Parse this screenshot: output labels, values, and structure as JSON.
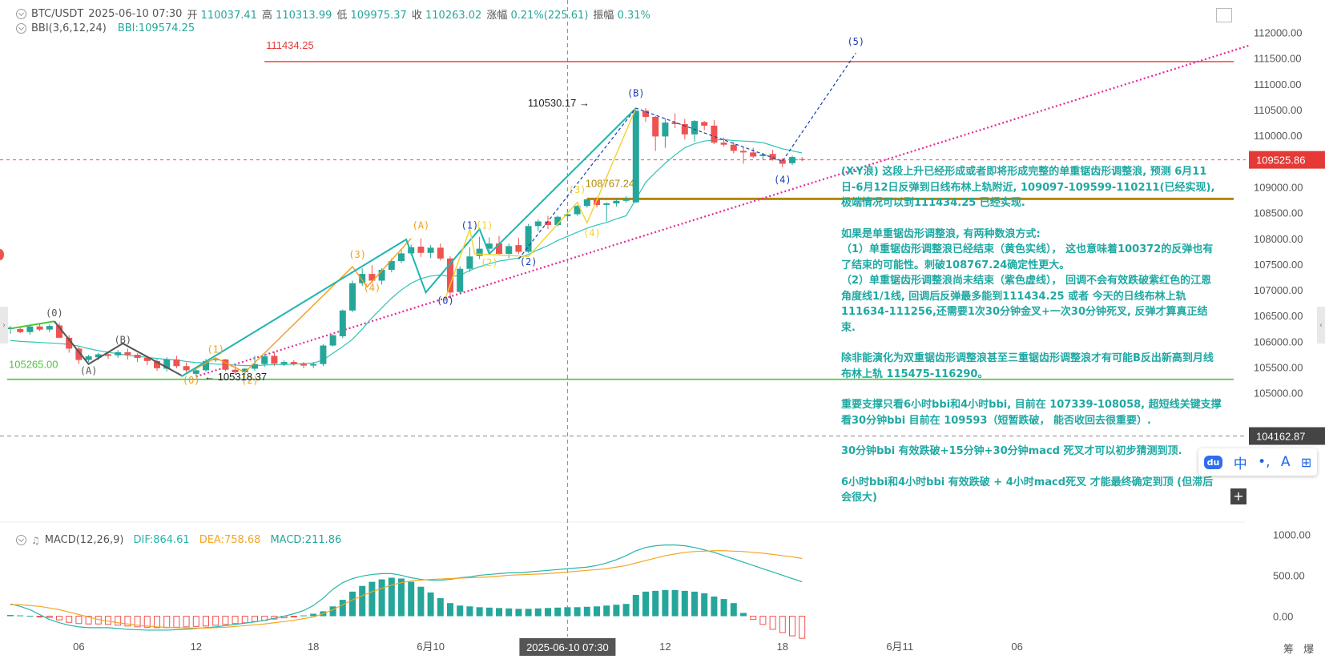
{
  "header": {
    "symbol": "BTC/USDT",
    "datetime": "2025-06-10 07:30",
    "open_label": "开",
    "open": "110037.41",
    "high_label": "高",
    "high": "110313.99",
    "low_label": "低",
    "low": "109975.37",
    "close_label": "收",
    "close": "110263.02",
    "change_label": "涨幅",
    "change": "0.21%(225.61)",
    "amp_label": "振幅",
    "amp": "0.31%",
    "bbi_name": "BBI(3,6,12,24)",
    "bbi_value": "BBI:109574.25"
  },
  "macd_header": {
    "name": "MACD(12,26,9)",
    "dif": "DIF:864.61",
    "dea": "DEA:758.68",
    "macd": "MACD:211.86"
  },
  "colors": {
    "up": "#26a69a",
    "down": "#ef5350",
    "bbi": "#2ec5b6",
    "pink": "#e6279a",
    "gold": "#b08a00",
    "green": "#4cc638",
    "red_line": "#e53935",
    "orange": "#f59c1a",
    "yellow": "#f2d22e",
    "teal": "#1fb5b0",
    "dark": "#555555",
    "blue_wave": "#1a3fae"
  },
  "chart_data": {
    "type": "candlestick",
    "ylim": [
      104000,
      112350
    ],
    "y_ticks": [
      112000,
      111500,
      111000,
      110500,
      110000,
      109500,
      109000,
      108500,
      108000,
      107500,
      107000,
      106500,
      106000,
      105500,
      105000
    ],
    "y_tick_labels": [
      "112000.00",
      "111500.00",
      "111000.00",
      "110500.00",
      "110000.00",
      "109500.00",
      "109000.00",
      "108500.00",
      "108000.00",
      "107500.00",
      "107000.00",
      "106500.00",
      "106000.00",
      "105500.00",
      "105000.00"
    ],
    "x_labels": [
      {
        "text": "06",
        "bar": 7
      },
      {
        "text": "12",
        "bar": 19
      },
      {
        "text": "18",
        "bar": 31
      },
      {
        "text": "6月10",
        "bar": 43
      },
      {
        "text": "12",
        "bar": 67
      },
      {
        "text": "18",
        "bar": 79
      },
      {
        "text": "6月11",
        "bar": 91
      },
      {
        "text": "06",
        "bar": 103
      }
    ],
    "crosshair": {
      "bar": 57,
      "label": "2025-06-10 07:30",
      "price_label": "104162.87",
      "price": 104162.87
    },
    "last_price": {
      "price": 109525.86,
      "label": "109525.86"
    },
    "candles": [
      [
        106240,
        106300,
        106150,
        106270
      ],
      [
        106240,
        106270,
        106160,
        106180
      ],
      [
        106180,
        106320,
        106130,
        106290
      ],
      [
        106290,
        106360,
        106200,
        106230
      ],
      [
        106230,
        106330,
        106180,
        106300
      ],
      [
        106310,
        106360,
        106060,
        106070
      ],
      [
        106070,
        106120,
        105780,
        105860
      ],
      [
        105860,
        105900,
        105560,
        105640
      ],
      [
        105640,
        105740,
        105600,
        105710
      ],
      [
        105690,
        105780,
        105640,
        105750
      ],
      [
        105750,
        105800,
        105660,
        105720
      ],
      [
        105730,
        105830,
        105680,
        105790
      ],
      [
        105790,
        105860,
        105650,
        105740
      ],
      [
        105740,
        105770,
        105600,
        105680
      ],
      [
        105680,
        105720,
        105540,
        105620
      ],
      [
        105620,
        105660,
        105430,
        105480
      ],
      [
        105470,
        105690,
        105420,
        105650
      ],
      [
        105650,
        105720,
        105480,
        105520
      ],
      [
        105520,
        105590,
        105400,
        105440
      ],
      [
        105370,
        105490,
        105318.37,
        105440
      ],
      [
        105440,
        105660,
        105410,
        105620
      ],
      [
        105640,
        105690,
        105600,
        105650
      ],
      [
        105650,
        105660,
        105420,
        105450
      ],
      [
        105450,
        105530,
        105360,
        105400
      ],
      [
        105400,
        105480,
        105350,
        105470
      ],
      [
        105470,
        105720,
        105430,
        105560
      ],
      [
        105560,
        105740,
        105510,
        105710
      ],
      [
        105720,
        105800,
        105520,
        105570
      ],
      [
        105560,
        105630,
        105520,
        105600
      ],
      [
        105600,
        105640,
        105530,
        105560
      ],
      [
        105560,
        105600,
        105480,
        105530
      ],
      [
        105530,
        105600,
        105480,
        105560
      ],
      [
        105560,
        105950,
        105520,
        105920
      ],
      [
        105920,
        106140,
        105900,
        106120
      ],
      [
        106100,
        106620,
        106060,
        106600
      ],
      [
        106600,
        107180,
        106570,
        107130
      ],
      [
        107130,
        107420,
        107080,
        107310
      ],
      [
        107310,
        107480,
        107130,
        107180
      ],
      [
        107180,
        107420,
        107100,
        107390
      ],
      [
        107390,
        107610,
        107340,
        107560
      ],
      [
        107560,
        107780,
        107520,
        107710
      ],
      [
        107710,
        107880,
        107670,
        107830
      ],
      [
        107840,
        108000,
        107640,
        107720
      ],
      [
        107720,
        107870,
        107620,
        107820
      ],
      [
        107820,
        107900,
        107570,
        107610
      ],
      [
        107610,
        107650,
        106830,
        106950
      ],
      [
        106960,
        107460,
        106940,
        107410
      ],
      [
        107410,
        107830,
        107350,
        107650
      ],
      [
        107660,
        108030,
        107600,
        107800
      ],
      [
        107800,
        108020,
        107690,
        107900
      ],
      [
        107900,
        108050,
        107670,
        107700
      ],
      [
        107700,
        107900,
        107620,
        107850
      ],
      [
        107870,
        108010,
        107700,
        107740
      ],
      [
        107740,
        108280,
        107720,
        108240
      ],
      [
        108240,
        108370,
        108140,
        108330
      ],
      [
        108330,
        108440,
        108180,
        108260
      ],
      [
        108260,
        108440,
        108230,
        108420
      ],
      [
        108430,
        108570,
        108330,
        108470
      ],
      [
        108470,
        108650,
        108440,
        108630
      ],
      [
        108630,
        108770,
        108600,
        108760
      ],
      [
        108760,
        108800,
        108600,
        108650
      ],
      [
        108650,
        108700,
        108330,
        108680
      ],
      [
        108680,
        108780,
        108620,
        108730
      ],
      [
        108730,
        108820,
        108690,
        108770
      ],
      [
        108700,
        110530.17,
        108690,
        110480
      ],
      [
        110480,
        110530.17,
        110260,
        110360
      ],
      [
        110360,
        110380,
        109700,
        109980
      ],
      [
        109980,
        110330,
        109760,
        110250
      ],
      [
        110250,
        110430,
        110140,
        110220
      ],
      [
        110220,
        110320,
        109920,
        110020
      ],
      [
        110020,
        110300,
        109880,
        110280
      ],
      [
        110260,
        110280,
        110100,
        110190
      ],
      [
        110190,
        110300,
        109830,
        109860
      ],
      [
        109860,
        109960,
        109780,
        109820
      ],
      [
        109820,
        109870,
        109650,
        109700
      ],
      [
        109700,
        109780,
        109450,
        109670
      ],
      [
        109670,
        109760,
        109560,
        109590
      ],
      [
        109600,
        109660,
        109520,
        109630
      ],
      [
        109640,
        109720,
        109510,
        109530
      ],
      [
        109530,
        109560,
        109380,
        109450
      ],
      [
        109460,
        109610,
        109420,
        109580
      ],
      [
        109540,
        109580,
        109500,
        109525.86
      ]
    ],
    "bbi": [
      106020,
      106000,
      105990,
      105980,
      105970,
      105960,
      105940,
      105910,
      105860,
      105820,
      105790,
      105760,
      105730,
      105710,
      105690,
      105670,
      105650,
      105640,
      105610,
      105590,
      105580,
      105560,
      105550,
      105540,
      105530,
      105530,
      105540,
      105550,
      105550,
      105560,
      105570,
      105580,
      105640,
      105770,
      105900,
      106040,
      106240,
      106460,
      106650,
      106840,
      107000,
      107130,
      107220,
      107270,
      107290,
      107260,
      107280,
      107380,
      107450,
      107510,
      107560,
      107590,
      107620,
      107690,
      107780,
      107860,
      107960,
      108040,
      108120,
      108200,
      108260,
      108310,
      108380,
      108440,
      108760,
      109090,
      109280,
      109460,
      109620,
      109760,
      109840,
      109890,
      109910,
      109920,
      109900,
      109890,
      109880,
      109860,
      109800,
      109740,
      109700,
      109660
    ],
    "macd_ylim": [
      -200,
      1150
    ],
    "macd_ticks": [
      1000,
      500,
      0
    ],
    "macd_tick_labels": [
      "1000.00",
      "500.00",
      "0.00"
    ],
    "macd_hist": [
      15,
      10,
      5,
      -5,
      -15,
      -45,
      -75,
      -90,
      -95,
      -95,
      -100,
      -110,
      -120,
      -130,
      -135,
      -140,
      -140,
      -135,
      -130,
      -125,
      -120,
      -110,
      -100,
      -90,
      -80,
      -65,
      -50,
      -35,
      -20,
      -5,
      10,
      30,
      60,
      120,
      200,
      300,
      370,
      420,
      450,
      470,
      460,
      420,
      360,
      290,
      220,
      160,
      130,
      120,
      110,
      105,
      100,
      95,
      90,
      90,
      95,
      100,
      105,
      110,
      110,
      115,
      120,
      130,
      140,
      150,
      260,
      300,
      310,
      320,
      320,
      310,
      300,
      280,
      240,
      210,
      160,
      40,
      -40,
      -100,
      -160,
      -200,
      -240,
      -270
    ],
    "dif": [
      150,
      120,
      80,
      20,
      -40,
      -80,
      -110,
      -130,
      -140,
      -140,
      -140,
      -150,
      -160,
      -165,
      -170,
      -170,
      -170,
      -165,
      -160,
      -150,
      -140,
      -130,
      -115,
      -100,
      -85,
      -70,
      -50,
      -25,
      0,
      30,
      70,
      130,
      220,
      330,
      410,
      460,
      490,
      510,
      520,
      520,
      500,
      470,
      450,
      440,
      440,
      450,
      470,
      480,
      500,
      510,
      520,
      530,
      530,
      540,
      550,
      560,
      570,
      580,
      590,
      600,
      620,
      650,
      690,
      740,
      800,
      840,
      860,
      870,
      870,
      860,
      840,
      810,
      780,
      740,
      700,
      660,
      620,
      580,
      540,
      500,
      460,
      420
    ],
    "dea": [
      140,
      140,
      130,
      120,
      100,
      80,
      50,
      20,
      -10,
      -40,
      -60,
      -80,
      -95,
      -110,
      -120,
      -130,
      -135,
      -140,
      -145,
      -145,
      -145,
      -140,
      -135,
      -125,
      -115,
      -105,
      -95,
      -80,
      -65,
      -50,
      -30,
      -10,
      30,
      80,
      140,
      200,
      250,
      300,
      340,
      380,
      410,
      430,
      440,
      450,
      455,
      460,
      465,
      470,
      475,
      480,
      490,
      500,
      505,
      510,
      515,
      520,
      530,
      540,
      550,
      560,
      570,
      580,
      600,
      620,
      650,
      680,
      710,
      740,
      760,
      780,
      790,
      795,
      800,
      800,
      795,
      790,
      780,
      770,
      755,
      740,
      725,
      705
    ],
    "lines": [
      {
        "name": "red-horizontal",
        "price": 111434.25,
        "label": "111434.25",
        "from_bar": 26
      },
      {
        "name": "gold-horizontal",
        "price": 108767.24,
        "label": "108767.24",
        "from_bar": 59
      },
      {
        "name": "green-horizontal",
        "price": 105265.0,
        "label": "105265.00",
        "from_bar": 0
      }
    ],
    "wave_labels": [
      {
        "text": "(0)",
        "bar": 4.5,
        "price": 106490,
        "color": "dark"
      },
      {
        "text": "(A)",
        "bar": 8,
        "price": 105370,
        "color": "dark"
      },
      {
        "text": "(B)",
        "bar": 11.5,
        "price": 105970,
        "color": "dark"
      },
      {
        "text": "(0)",
        "bar": 18.5,
        "price": 105180,
        "color": "orange"
      },
      {
        "text": "(1)",
        "bar": 21,
        "price": 105780,
        "color": "orange"
      },
      {
        "text": "(2)",
        "bar": 24.5,
        "price": 105180,
        "color": "orange"
      },
      {
        "text": "(3)",
        "bar": 35.5,
        "price": 107620,
        "color": "orange"
      },
      {
        "text": "(4)",
        "bar": 37,
        "price": 106980,
        "color": "orange"
      },
      {
        "text": "(A)",
        "bar": 42,
        "price": 108190,
        "color": "orange"
      },
      {
        "text": "(1)",
        "bar": 47,
        "price": 108190,
        "color": "blue_wave"
      },
      {
        "text": "(1)",
        "bar": 48.5,
        "price": 108190,
        "color": "yellow"
      },
      {
        "text": "(2)",
        "bar": 49,
        "price": 107470,
        "color": "yellow"
      },
      {
        "text": "(2)",
        "bar": 53,
        "price": 107480,
        "color": "blue_wave"
      },
      {
        "text": "(0)",
        "bar": 44.5,
        "price": 106730,
        "color": "blue_wave"
      },
      {
        "text": "(3)",
        "bar": 58,
        "price": 108880,
        "color": "yellow"
      },
      {
        "text": "(4)",
        "bar": 59.5,
        "price": 108040,
        "color": "yellow"
      },
      {
        "text": "(B)",
        "bar": 64,
        "price": 110760,
        "color": "blue_wave"
      },
      {
        "text": "(4)",
        "bar": 79,
        "price": 109080,
        "color": "blue_wave"
      },
      {
        "text": "(5)",
        "bar": 86.5,
        "price": 111760,
        "color": "blue_wave"
      }
    ],
    "price_annotations": [
      {
        "text": "110530.17",
        "bar": 59.5,
        "price": 110530.17
      },
      {
        "text": "105318.37",
        "bar": 20.5,
        "price": 105318.37
      }
    ]
  },
  "annotation_text": [
    "(X-Y浪) 这段上升已经形成或者即将形成完整的单重锯齿形调整浪, 预测 6月11日-6月12日反弹到日线布林上轨附近, 109097-109599-110211(已经实现),极端情况可以到111434.25 已经实现.",
    "如果是单重锯齿形调整浪, 有两种数浪方式:",
    "（1）单重锯齿形调整浪已经结束（黄色实线）， 这也意味着100372的反弹也有了结束的可能性。刺破108767.24确定性更大。",
    "（2）单重锯齿形调整浪尚未结束（紫色虚线）， 回调不会有效跌破紫红色的江恩角度线1/1线, 回调后反弹最多能到111434.25 或者 今天的日线布林上轨111634-111256,还需要1次30分钟金叉+一次30分钟死叉, 反弹才算真正结束.",
    "除非能演化为双重锯齿形调整浪甚至三重锯齿形调整浪才有可能B反出新高到月线布林上轨 115475-116290。",
    "重要支撑只看6小时bbi和4小时bbi, 目前在 107339-108058, 超短线关键支撑看30分钟bbi 目前在 109593（短暂跌破， 能否收回去很重要）.",
    "30分钟bbi 有效跌破+15分钟+30分钟macd 死叉才可以初步猜测到顶.",
    "6小时bbi和4小时bbi 有效跌破 + 4小时macd死叉 才能最终确定到顶 (但滞后会很大)"
  ],
  "toolbar": {
    "du": "du",
    "zh": "中",
    "dot": "•,",
    "person": "A",
    "grid": "⊞"
  },
  "axis_corner": "筹 爆"
}
